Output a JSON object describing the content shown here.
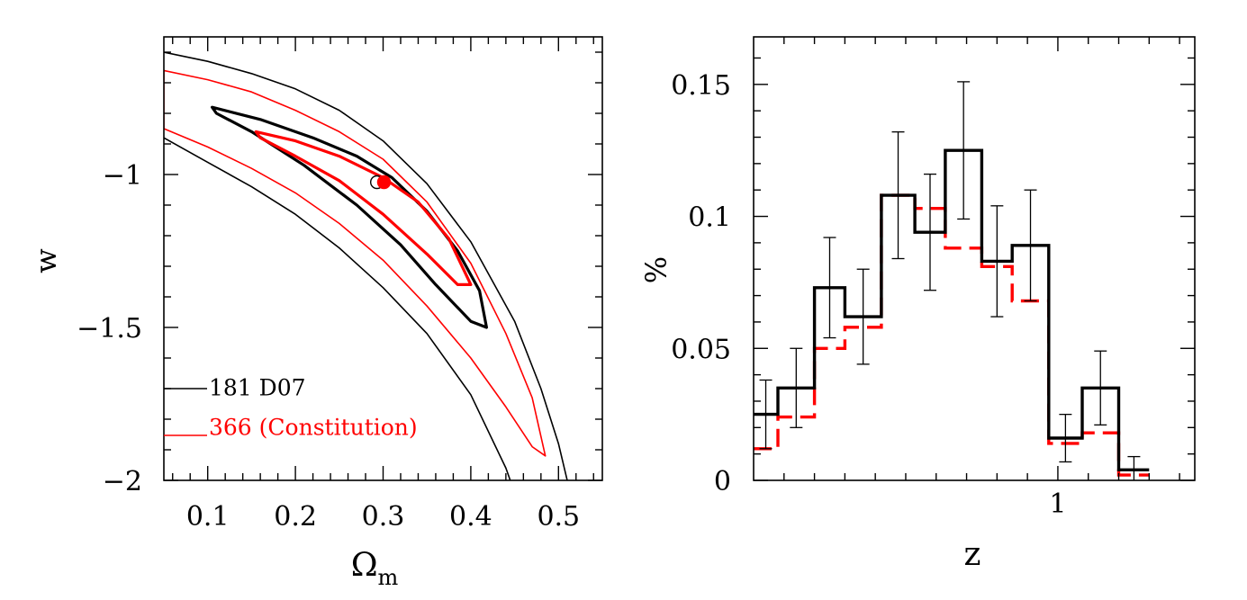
{
  "chart_data": [
    {
      "type": "contour",
      "xlabel": "Ω",
      "xlabel_sub": "m",
      "ylabel": "w",
      "xlim": [
        0.05,
        0.55
      ],
      "ylim": [
        -2.0,
        -0.55
      ],
      "xticks_major": [
        0.1,
        0.2,
        0.3,
        0.4,
        0.5
      ],
      "xtick_labels": [
        "0.1",
        "0.2",
        "0.3",
        "0.4",
        "0.5"
      ],
      "yticks_major": [
        -1.0,
        -1.5,
        -2.0
      ],
      "ytick_labels": [
        "−1",
        "−1.5",
        "−2"
      ],
      "colors": {
        "d07": "#000000",
        "constitution": "#ff0000"
      },
      "legend": [
        {
          "label": "181 D07",
          "color": "#000000"
        },
        {
          "label": "366 (Constitution)",
          "color": "#ff0000"
        }
      ],
      "best_fit": [
        {
          "name": "181 D07",
          "x": 0.293,
          "y": -1.025,
          "filled": false,
          "color": "#000000"
        },
        {
          "name": "366 (Constitution)",
          "x": 0.301,
          "y": -1.025,
          "filled": true,
          "color": "#ff0000"
        }
      ],
      "contours": [
        {
          "name": "D07 68%",
          "color": "#000000",
          "width": 3.2,
          "points": [
            [
              0.105,
              -0.78
            ],
            [
              0.16,
              -0.82
            ],
            [
              0.22,
              -0.88
            ],
            [
              0.27,
              -0.94
            ],
            [
              0.31,
              -1.01
            ],
            [
              0.35,
              -1.12
            ],
            [
              0.385,
              -1.25
            ],
            [
              0.41,
              -1.38
            ],
            [
              0.418,
              -1.5
            ],
            [
              0.4,
              -1.48
            ],
            [
              0.36,
              -1.36
            ],
            [
              0.32,
              -1.23
            ],
            [
              0.27,
              -1.1
            ],
            [
              0.21,
              -0.97
            ],
            [
              0.15,
              -0.86
            ],
            [
              0.11,
              -0.8
            ]
          ]
        },
        {
          "name": "Constitution 68%",
          "color": "#ff0000",
          "width": 3.2,
          "points": [
            [
              0.155,
              -0.86
            ],
            [
              0.2,
              -0.89
            ],
            [
              0.25,
              -0.94
            ],
            [
              0.3,
              -1.01
            ],
            [
              0.34,
              -1.09
            ],
            [
              0.375,
              -1.21
            ],
            [
              0.4,
              -1.36
            ],
            [
              0.385,
              -1.36
            ],
            [
              0.35,
              -1.26
            ],
            [
              0.3,
              -1.13
            ],
            [
              0.25,
              -1.02
            ],
            [
              0.2,
              -0.94
            ],
            [
              0.16,
              -0.88
            ]
          ]
        },
        {
          "name": "D07 95% upper",
          "color": "#000000",
          "width": 1.6,
          "points": [
            [
              0.05,
              -0.6
            ],
            [
              0.1,
              -0.63
            ],
            [
              0.15,
              -0.67
            ],
            [
              0.2,
              -0.72
            ],
            [
              0.25,
              -0.79
            ],
            [
              0.3,
              -0.89
            ],
            [
              0.35,
              -1.03
            ],
            [
              0.4,
              -1.22
            ],
            [
              0.45,
              -1.48
            ],
            [
              0.48,
              -1.7
            ],
            [
              0.5,
              -1.88
            ],
            [
              0.51,
              -2.0
            ]
          ]
        },
        {
          "name": "D07 95% lower",
          "color": "#000000",
          "width": 1.6,
          "points": [
            [
              0.05,
              -0.88
            ],
            [
              0.1,
              -0.96
            ],
            [
              0.15,
              -1.04
            ],
            [
              0.2,
              -1.13
            ],
            [
              0.25,
              -1.24
            ],
            [
              0.3,
              -1.37
            ],
            [
              0.35,
              -1.52
            ],
            [
              0.4,
              -1.72
            ],
            [
              0.44,
              -1.96
            ],
            [
              0.445,
              -2.0
            ]
          ]
        },
        {
          "name": "Constitution 95%",
          "color": "#ff0000",
          "width": 1.6,
          "points": [
            [
              0.05,
              -0.66
            ],
            [
              0.1,
              -0.69
            ],
            [
              0.15,
              -0.73
            ],
            [
              0.2,
              -0.79
            ],
            [
              0.25,
              -0.86
            ],
            [
              0.3,
              -0.95
            ],
            [
              0.35,
              -1.09
            ],
            [
              0.4,
              -1.29
            ],
            [
              0.44,
              -1.52
            ],
            [
              0.47,
              -1.73
            ],
            [
              0.485,
              -1.92
            ],
            [
              0.47,
              -1.89
            ],
            [
              0.44,
              -1.76
            ],
            [
              0.4,
              -1.6
            ],
            [
              0.35,
              -1.43
            ],
            [
              0.3,
              -1.28
            ],
            [
              0.25,
              -1.16
            ],
            [
              0.2,
              -1.06
            ],
            [
              0.15,
              -0.98
            ],
            [
              0.1,
              -0.91
            ],
            [
              0.05,
              -0.85
            ]
          ]
        }
      ]
    },
    {
      "type": "histogram",
      "xlabel": "z",
      "ylabel": "%",
      "xlim": [
        0.0,
        1.45
      ],
      "ylim": [
        0.0,
        0.168
      ],
      "xticks_major": [
        1.0
      ],
      "xtick_labels": [
        "1"
      ],
      "yticks_major": [
        0.0,
        0.05,
        0.1,
        0.15
      ],
      "ytick_labels": [
        "0",
        "0.05",
        "0.1",
        "0.15"
      ],
      "bin_edges": [
        0.0,
        0.08,
        0.2,
        0.3,
        0.42,
        0.53,
        0.63,
        0.75,
        0.85,
        0.97,
        1.08,
        1.2,
        1.3
      ],
      "series": [
        {
          "name": "181 D07",
          "color": "#000000",
          "style": "solid",
          "values": [
            0.025,
            0.035,
            0.073,
            0.062,
            0.108,
            0.094,
            0.125,
            0.083,
            0.089,
            0.016,
            0.035,
            0.004
          ],
          "errors": [
            0.013,
            0.015,
            0.019,
            0.018,
            0.024,
            0.022,
            0.026,
            0.021,
            0.021,
            0.009,
            0.014,
            0.005
          ]
        },
        {
          "name": "366 (Constitution)",
          "color": "#ff0000",
          "style": "dashed",
          "values": [
            0.012,
            0.024,
            0.05,
            0.058,
            0.108,
            0.103,
            0.088,
            0.081,
            0.068,
            0.014,
            0.018,
            0.002
          ]
        }
      ]
    }
  ]
}
